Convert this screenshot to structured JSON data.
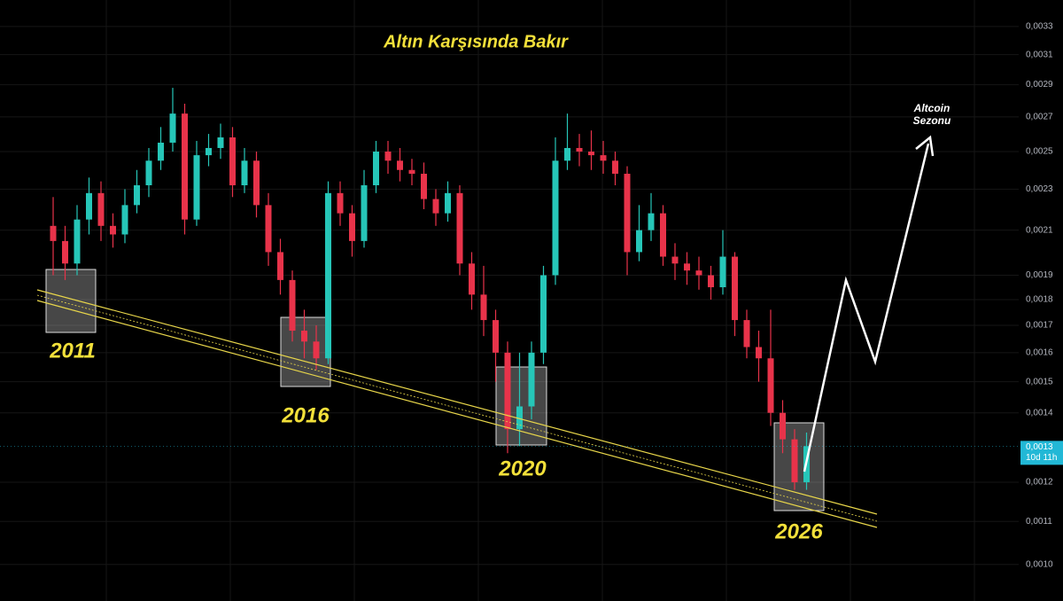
{
  "chart_data": {
    "type": "candlestick",
    "title": "Altın Karşısında Bakır",
    "log_scale": true,
    "grid": true,
    "ylim": [
      0.000922,
      0.0035
    ],
    "yticks": [
      {
        "value": 0.001,
        "label": "0,0010"
      },
      {
        "value": 0.0011,
        "label": "0,0011"
      },
      {
        "value": 0.0012,
        "label": "0,0012"
      },
      {
        "value": 0.0014,
        "label": "0,0014"
      },
      {
        "value": 0.0015,
        "label": "0,0015"
      },
      {
        "value": 0.0016,
        "label": "0,0016"
      },
      {
        "value": 0.0017,
        "label": "0,0017"
      },
      {
        "value": 0.0018,
        "label": "0,0018"
      },
      {
        "value": 0.0019,
        "label": "0,0019"
      },
      {
        "value": 0.0021,
        "label": "0,0021"
      },
      {
        "value": 0.0023,
        "label": "0,0023"
      },
      {
        "value": 0.0025,
        "label": "0,0025"
      },
      {
        "value": 0.0027,
        "label": "0,0027"
      },
      {
        "value": 0.0029,
        "label": "0,0029"
      },
      {
        "value": 0.0031,
        "label": "0,0031"
      },
      {
        "value": 0.0033,
        "label": "0,0033"
      }
    ],
    "up_color": "#26c6b8",
    "down_color": "#e8334a",
    "open": [
      0.00212,
      0.00205,
      0.00195,
      0.00215,
      0.00228,
      0.00212,
      0.00208,
      0.00222,
      0.00232,
      0.00245,
      0.00255,
      0.00272,
      0.00215,
      0.00248,
      0.00252,
      0.00258,
      0.00232,
      0.00245,
      0.00222,
      0.002,
      0.00188,
      0.00168,
      0.00164,
      0.00158,
      0.00228,
      0.00218,
      0.00205,
      0.00232,
      0.0025,
      0.00245,
      0.0024,
      0.00238,
      0.00225,
      0.00218,
      0.00228,
      0.00195,
      0.00182,
      0.00172,
      0.0016,
      0.00135,
      0.00142,
      0.0016,
      0.0019,
      0.00245,
      0.00252,
      0.0025,
      0.00248,
      0.00245,
      0.00238,
      0.002,
      0.0021,
      0.00218,
      0.00198,
      0.00195,
      0.00192,
      0.0019,
      0.00185,
      0.00198,
      0.00172,
      0.00162,
      0.00158,
      0.0014,
      0.00132,
      0.0012
    ],
    "high": [
      0.00226,
      0.00212,
      0.00222,
      0.00236,
      0.00234,
      0.00218,
      0.0023,
      0.0024,
      0.00252,
      0.00264,
      0.00288,
      0.00278,
      0.00256,
      0.0026,
      0.00266,
      0.00264,
      0.00252,
      0.0025,
      0.00228,
      0.00206,
      0.00192,
      0.00176,
      0.0017,
      0.00234,
      0.00234,
      0.00222,
      0.0024,
      0.00256,
      0.00256,
      0.00252,
      0.00246,
      0.00244,
      0.0023,
      0.00234,
      0.00232,
      0.002,
      0.00194,
      0.00176,
      0.00164,
      0.0016,
      0.00164,
      0.00194,
      0.00258,
      0.00272,
      0.0026,
      0.00262,
      0.00256,
      0.0025,
      0.00242,
      0.00222,
      0.00228,
      0.00222,
      0.00204,
      0.002,
      0.00198,
      0.00194,
      0.0021,
      0.002,
      0.00176,
      0.00168,
      0.00176,
      0.00144,
      0.00135,
      0.00134
    ],
    "low": [
      0.0019,
      0.00188,
      0.0019,
      0.00208,
      0.00205,
      0.00202,
      0.00204,
      0.00218,
      0.00226,
      0.0024,
      0.0025,
      0.00208,
      0.00212,
      0.00242,
      0.00246,
      0.00226,
      0.00228,
      0.00216,
      0.00194,
      0.00182,
      0.00164,
      0.00158,
      0.00154,
      0.00156,
      0.00212,
      0.00198,
      0.00202,
      0.00228,
      0.00238,
      0.00234,
      0.00232,
      0.0022,
      0.00212,
      0.00214,
      0.0019,
      0.00176,
      0.00166,
      0.0015,
      0.00128,
      0.0013,
      0.00138,
      0.00156,
      0.00186,
      0.0024,
      0.00242,
      0.0024,
      0.00238,
      0.00232,
      0.0019,
      0.00196,
      0.00205,
      0.00194,
      0.00188,
      0.00186,
      0.00184,
      0.0018,
      0.00182,
      0.00166,
      0.00158,
      0.0015,
      0.00136,
      0.00128,
      0.00118,
      0.00118
    ],
    "close": [
      0.00205,
      0.00195,
      0.00215,
      0.00228,
      0.00212,
      0.00208,
      0.00222,
      0.00232,
      0.00245,
      0.00255,
      0.00272,
      0.00215,
      0.00248,
      0.00252,
      0.00258,
      0.00232,
      0.00245,
      0.00222,
      0.002,
      0.00188,
      0.00168,
      0.00164,
      0.00158,
      0.00228,
      0.00218,
      0.00205,
      0.00232,
      0.0025,
      0.00245,
      0.0024,
      0.00238,
      0.00225,
      0.00218,
      0.00228,
      0.00195,
      0.00182,
      0.00172,
      0.0016,
      0.00135,
      0.00142,
      0.0016,
      0.0019,
      0.00245,
      0.00252,
      0.0025,
      0.00248,
      0.00245,
      0.00238,
      0.002,
      0.0021,
      0.00218,
      0.00198,
      0.00195,
      0.00192,
      0.0019,
      0.00185,
      0.00198,
      0.00172,
      0.00162,
      0.00158,
      0.0014,
      0.00132,
      0.0012,
      0.0013
    ],
    "current_price": {
      "value": 0.0013,
      "label": "0,0013"
    },
    "countdown": "10d 11h",
    "annotations": [
      "2011",
      "2016",
      "2020",
      "2026"
    ],
    "arrow_label": [
      "Altcoin",
      "Sezonu"
    ]
  }
}
